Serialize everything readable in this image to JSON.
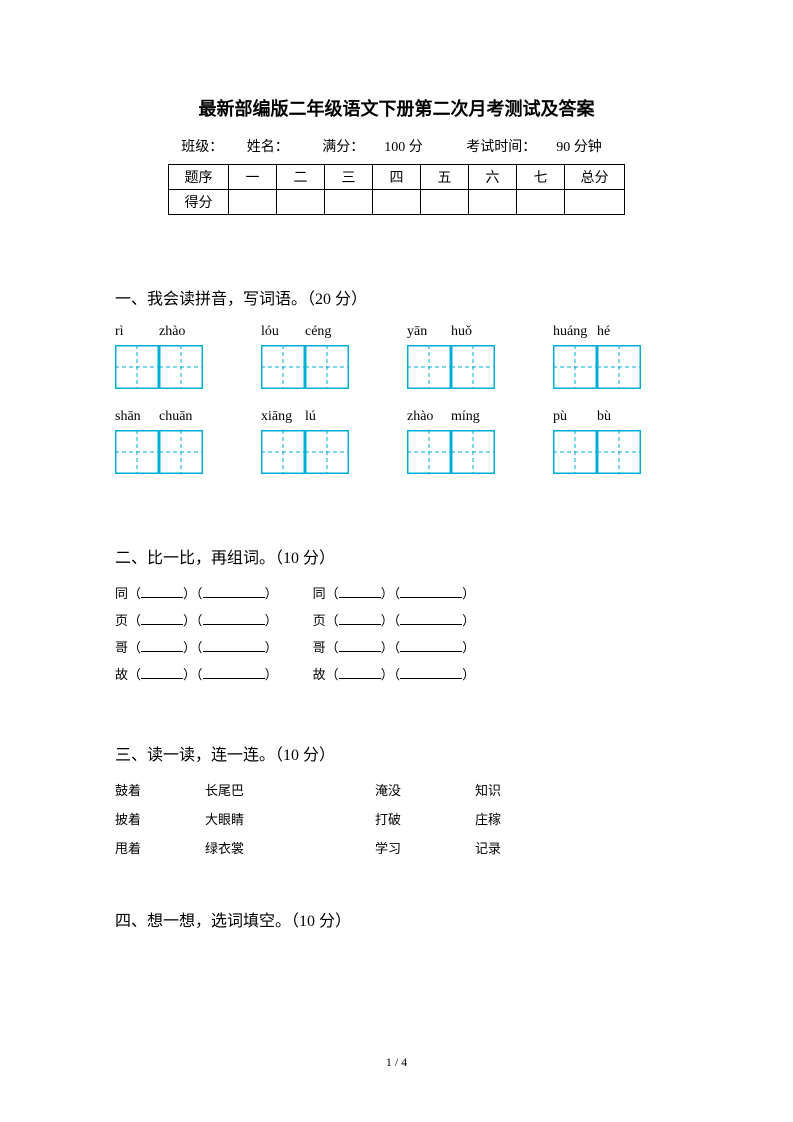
{
  "title": {
    "text": "最新部编版二年级语文下册第二次月考测试及答案",
    "fontsize": 18
  },
  "info": {
    "class_label": "班级：",
    "name_label": "姓名：",
    "full_label": "满分：",
    "full_value": "100 分",
    "time_label": "考试时间：",
    "time_value": "90 分钟",
    "fontsize": 14
  },
  "score_table": {
    "row1": [
      "题序",
      "一",
      "二",
      "三",
      "四",
      "五",
      "六",
      "七",
      "总分"
    ],
    "row2_label": "得分",
    "fontsize": 14,
    "border_color": "#000000"
  },
  "section1": {
    "title": "一、我会读拼音，写词语。（20 分）",
    "title_fontsize": 16,
    "pinyin_fontsize": 14,
    "rows": [
      [
        [
          "rì",
          "zhào"
        ],
        [
          "lóu",
          "céng"
        ],
        [
          "yān",
          "huǒ"
        ],
        [
          "huáng",
          "hé"
        ]
      ],
      [
        [
          "shān",
          "chuān"
        ],
        [
          "xiāng",
          "lú"
        ],
        [
          "zhào",
          "míng"
        ],
        [
          "pù",
          "bù"
        ]
      ]
    ],
    "tianzi": {
      "size": 44,
      "border_color": "#00aed6",
      "dash_color": "#00aed6",
      "border_width": 1.5,
      "dash_pattern": "4 3"
    }
  },
  "section2": {
    "title": "二、比一比，再组词。（10 分）",
    "title_fontsize": 16,
    "item_fontsize": 13,
    "rows": [
      {
        "left": "同",
        "right": "同"
      },
      {
        "left": "页",
        "right": "页"
      },
      {
        "left": "哥",
        "right": "哥"
      },
      {
        "left": "故",
        "right": "故"
      }
    ],
    "paren_open": "（",
    "paren_close": "）"
  },
  "section3": {
    "title": "三、读一读，连一连。（10 分）",
    "title_fontsize": 16,
    "item_fontsize": 13,
    "col1": [
      "鼓着",
      "披着",
      "甩着"
    ],
    "col2": [
      "长尾巴",
      "大眼睛",
      "绿衣裳"
    ],
    "col3": [
      "淹没",
      "打破",
      "学习"
    ],
    "col4": [
      "知识",
      "庄稼",
      "记录"
    ]
  },
  "section4": {
    "title": "四、想一想，选词填空。（10 分）",
    "title_fontsize": 16
  },
  "footer": {
    "page": "1 / 4",
    "fontsize": 12
  }
}
